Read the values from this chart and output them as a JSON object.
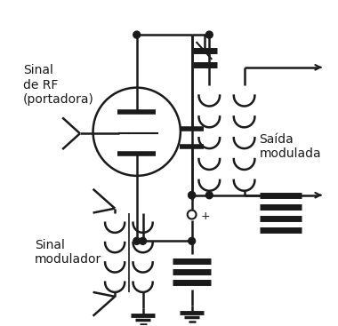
{
  "bg_color": "#ffffff",
  "line_color": "#1a1a1a",
  "text_color": "#1a1a1a",
  "fig_width": 3.8,
  "fig_height": 3.67,
  "dpi": 100,
  "labels": {
    "rf_signal": "Sinal\nde RF\n(portadora)",
    "modulated_output": "Saída\nmodulada",
    "modulator_signal": "Sinal\nmodulador"
  }
}
